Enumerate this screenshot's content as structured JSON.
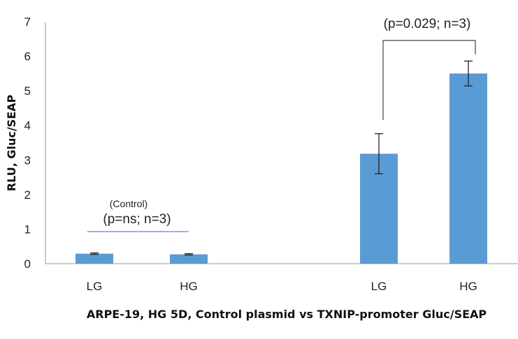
{
  "chart_data": {
    "type": "bar",
    "categories": [
      "LG",
      "HG",
      "LG",
      "HG"
    ],
    "values": [
      0.29,
      0.27,
      3.18,
      5.5
    ],
    "error": [
      0.02,
      0.02,
      0.58,
      0.36
    ],
    "xlabel": "ARPE-19, HG 5D, Control plasmid vs TXNIP-promoter Gluc/SEAP",
    "ylabel": "RLU, Gluc/SEAP",
    "ylim": [
      0,
      7
    ],
    "yticks": [
      "0",
      "1",
      "2",
      "3",
      "4",
      "5",
      "6",
      "7"
    ],
    "grid": false,
    "legend": "none",
    "bar_color": "#5b9bd5",
    "annotations": {
      "control_label": "(Control)",
      "control_stat": "(p=ns; n=3)",
      "txnip_stat": "(p=0.029; n=3)"
    }
  }
}
